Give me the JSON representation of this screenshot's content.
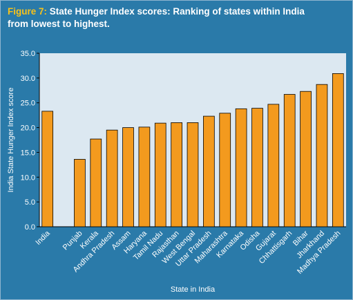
{
  "header": {
    "figure_label": "Figure 7:",
    "title_line1": " State Hunger Index scores: Ranking of states within India",
    "title_line2": "from lowest to highest."
  },
  "colors": {
    "header_bg": "#2a7aa9",
    "figure_label": "#f7c21b",
    "plot_bg": "#dce8f1",
    "chart_bg": "#2a7aa9",
    "bar_fill": "#f39a1e",
    "bar_stroke": "#000000",
    "axis_text": "#ffffff"
  },
  "chart_data": {
    "type": "bar",
    "title": "State Hunger Index scores: Ranking of states within India from lowest to highest.",
    "xlabel": "State in India",
    "ylabel": "India State Hunger Index score",
    "ylim": [
      0,
      35
    ],
    "yticks": [
      "0.0",
      "5.0",
      "10.0",
      "15.0",
      "20.0",
      "25.0",
      "30.0",
      "35.0"
    ],
    "grid": false,
    "categories": [
      "India",
      "",
      "Punjab",
      "Kerala",
      "Andhra Pradesh",
      "Assam",
      "Haryana",
      "Tamil Nadu",
      "Rajasthan",
      "West Bengal",
      "Uttar Pradesh",
      "Maharashtra",
      "Karnataka",
      "Odisha",
      "Gujarat",
      "Chhattisgarh",
      "Bihar",
      "Jharkhand",
      "Madhya Pradesh"
    ],
    "values": [
      23.3,
      null,
      13.6,
      17.7,
      19.5,
      20.0,
      20.1,
      20.9,
      21.0,
      21.0,
      22.3,
      22.9,
      23.8,
      23.9,
      24.7,
      26.7,
      27.3,
      28.7,
      30.9
    ]
  }
}
